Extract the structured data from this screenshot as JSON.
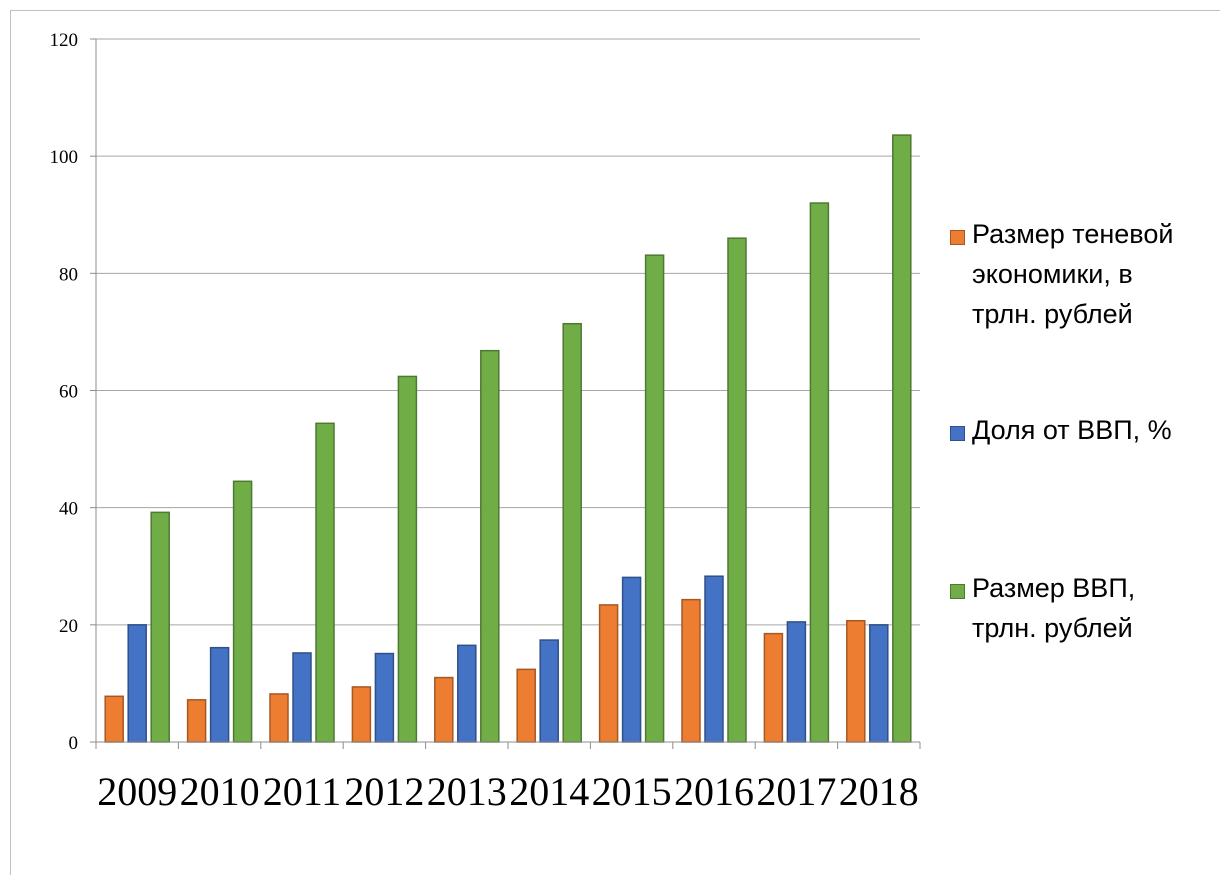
{
  "chart_data": {
    "type": "bar",
    "categories": [
      "2009",
      "2010",
      "2011",
      "2012",
      "2013",
      "2014",
      "2015",
      "2016",
      "2017",
      "2018"
    ],
    "series": [
      {
        "name": "Размер теневой экономики, в трлн. рублей",
        "color": "#ED7D31",
        "values": [
          7.8,
          7.2,
          8.2,
          9.4,
          11.0,
          12.4,
          23.4,
          24.3,
          18.5,
          20.7
        ]
      },
      {
        "name": "Доля от ВВП, %",
        "color": "#4472C4",
        "values": [
          20.0,
          16.1,
          15.2,
          15.1,
          16.5,
          17.4,
          28.1,
          28.3,
          20.5,
          20.0
        ]
      },
      {
        "name": "Размер ВВП, трлн. рублей",
        "color": "#70AD47",
        "values": [
          39.2,
          44.5,
          54.4,
          62.4,
          66.8,
          71.4,
          83.1,
          86.0,
          92.0,
          103.6
        ]
      }
    ],
    "ylim": [
      0,
      120
    ],
    "yticks": [
      "0",
      "20",
      "40",
      "60",
      "80",
      "100",
      "120"
    ],
    "grid": true,
    "legend_position": "right"
  }
}
